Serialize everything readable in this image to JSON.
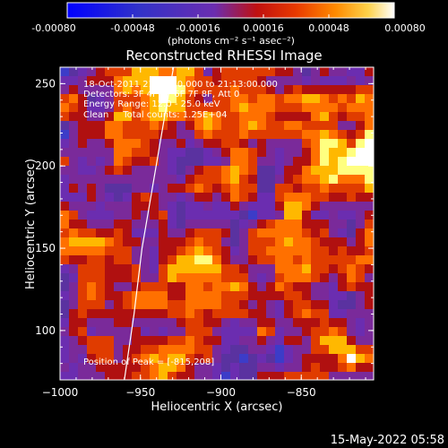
{
  "colorbar": {
    "ticks": [
      "-0.00080",
      "-0.00048",
      "-0.00016",
      "0.00016",
      "0.00048",
      "0.00080"
    ],
    "tick_values": [
      -0.0008,
      -0.00048,
      -0.00016,
      0.00016,
      0.00048,
      0.0008
    ],
    "units": "(photons cm⁻² s⁻¹ asec⁻²)",
    "range": [
      -0.0008,
      0.0008
    ]
  },
  "chart_data": {
    "type": "heatmap",
    "title": "Reconstructed RHESSI Image",
    "xlabel": "Heliocentric X (arcsec)",
    "ylabel": "Heliocentric Y (arcsec)",
    "xlim": [
      -1000,
      -805
    ],
    "ylim": [
      70,
      260
    ],
    "xticks": [
      -1000,
      -950,
      -900,
      -850
    ],
    "xtick_labels": [
      "−1000",
      "−950",
      "−900",
      "−850"
    ],
    "yticks": [
      100,
      150,
      200,
      250
    ],
    "ytick_labels": [
      "100",
      "150",
      "200",
      "250"
    ],
    "peak": [
      -815,
      208
    ],
    "limb_curve": [
      [
        -960,
        70
      ],
      [
        -954,
        110
      ],
      [
        -949,
        150
      ],
      [
        -942,
        190
      ],
      [
        -935,
        230
      ],
      [
        -929,
        262
      ]
    ],
    "colors": [
      "#0000ff",
      "#3c3cc8",
      "#5a32a0",
      "#6b2db0",
      "#7a2a9a",
      "#b01010",
      "#e03c00",
      "#ff7000",
      "#ffb800",
      "#ffff80",
      "#ffffff"
    ],
    "annotations": {
      "time": "18-Oct-2011 21:08:40.000 to 21:13:00.000",
      "detectors": "Detectors: 3F 4F 5F 6F 7F 8F, Att 0",
      "energy": "Energy Range: 12.0 - 25.0 keV",
      "clean": "Clean     Total counts: 1.25E+04",
      "peak_label": "Position of Peak = [-815,208]"
    }
  },
  "footer": {
    "date": "15-May-2022 05:58"
  }
}
